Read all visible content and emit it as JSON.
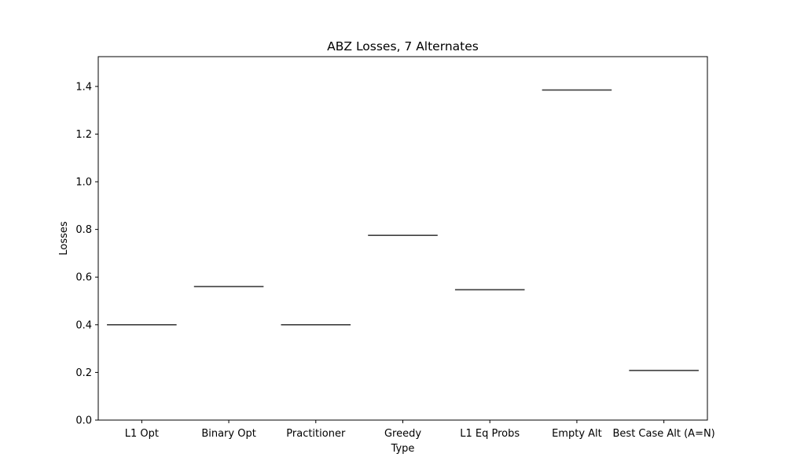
{
  "chart_data": {
    "type": "box",
    "title": "ABZ Losses, 7 Alternates",
    "xlabel": "Type",
    "ylabel": "Losses",
    "categories": [
      "L1 Opt",
      "Binary Opt",
      "Practitioner",
      "Greedy",
      "L1 Eq Probs",
      "Empty Alt",
      "Best Case Alt (A=N)"
    ],
    "values": [
      0.4,
      0.56,
      0.4,
      0.775,
      0.547,
      1.385,
      0.208
    ],
    "ylim": [
      0,
      1.525
    ],
    "yticks": [
      0.0,
      0.2,
      0.4,
      0.6,
      0.8,
      1.0,
      1.2,
      1.4
    ],
    "grid": false,
    "line_color": "#3f3f3f"
  }
}
